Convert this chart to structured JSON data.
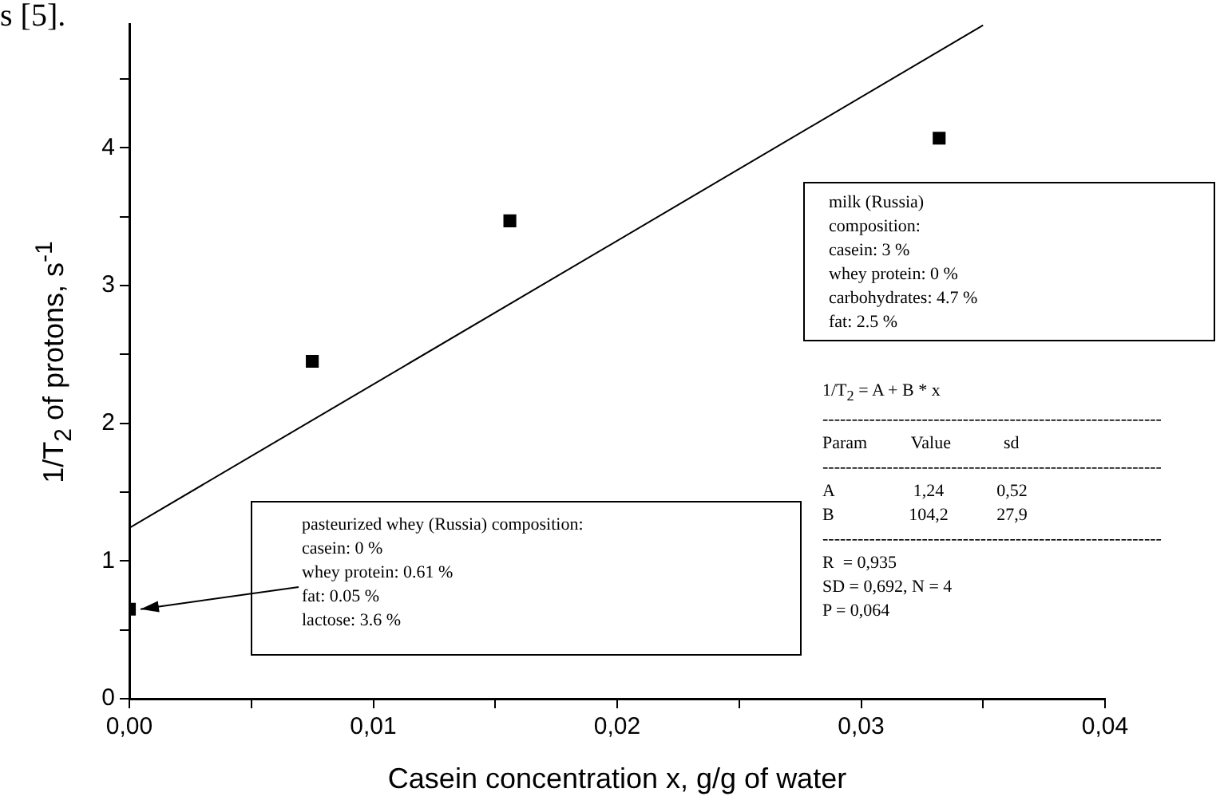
{
  "chart_data": {
    "type": "scatter",
    "xlabel": "Casein concentration x, g/g of water",
    "ylabel": "1/T$_{2}$ of protons, s$^{-1}$",
    "marker": "square",
    "series": [
      {
        "type": "scatter",
        "color": "#000000",
        "x": [
          0,
          0.0075,
          0.0156,
          0.0332
        ],
        "values": [
          0.65,
          2.45,
          3.47,
          4.07
        ]
      },
      {
        "type": "line",
        "color": "#000000",
        "marker": "none",
        "x": [
          0,
          0.035
        ],
        "values": [
          1.24,
          4.89
        ]
      }
    ],
    "xlim": [
      0,
      0.04
    ],
    "xticks": [
      {
        "value": 0,
        "label": "0,00"
      },
      {
        "value": 0.005,
        "label": null
      },
      {
        "value": 0.01,
        "label": "0,01"
      },
      {
        "value": 0.015,
        "label": null
      },
      {
        "value": 0.02,
        "label": "0,02"
      },
      {
        "value": 0.025,
        "label": null
      },
      {
        "value": 0.03,
        "label": "0,03"
      },
      {
        "value": 0.035,
        "label": null
      },
      {
        "value": 0.04,
        "label": "0,04"
      }
    ],
    "ylim": [
      0,
      4.9
    ],
    "yticks": [
      0,
      {
        "value": 0.5,
        "label": null
      },
      1,
      {
        "value": 1.5,
        "label": null
      },
      2,
      {
        "value": 2.5,
        "label": null
      },
      3,
      {
        "value": 3.5,
        "label": null
      },
      4,
      {
        "value": 4.5,
        "label": null
      }
    ],
    "annotations": [
      "s [5].",
      {
        "text": "pasteurized whey (Russia) composition:\ncasein: 0 %\nwhey protein: 0.61 %\nfat: 0.05 %\nlactose: 3.6 %",
        "x": 0,
        "y": 0.65
      },
      "milk (Russia)\ncomposition:\ncasein: 3 %\nwhey protein: 0 %\ncarbohydrates: 4.7 %\nfat: 2.5 %",
      "1/T$_{2}$ = A + B * x\n----------------------------------------------------------\nParam          Value            sd\n----------------------------------------------------------\nA                  1,24            0,52\nB                 104,2           27,9\n----------------------------------------------------------\nR  = 0,935\nSD = 0,692, N = 4\nP = 0,064"
    ]
  }
}
